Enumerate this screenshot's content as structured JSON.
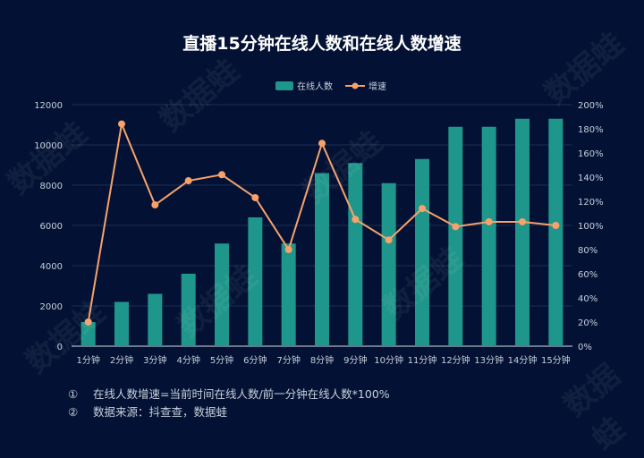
{
  "chart_data": {
    "type": "bar",
    "title": "直播15分钟在线人数和在线人数增速",
    "categories": [
      "1分钟",
      "2分钟",
      "3分钟",
      "4分钟",
      "5分钟",
      "6分钟",
      "7分钟",
      "8分钟",
      "9分钟",
      "10分钟",
      "11分钟",
      "12分钟",
      "13分钟",
      "14分钟",
      "15分钟"
    ],
    "series": [
      {
        "name": "在线人数",
        "type": "bar",
        "axis": "left",
        "color": "#1f968b",
        "values": [
          1200,
          2200,
          2600,
          3600,
          5100,
          6400,
          5100,
          8600,
          9100,
          8100,
          9300,
          10900,
          10900,
          11300,
          11300
        ]
      },
      {
        "name": "增速",
        "type": "line",
        "axis": "right",
        "color": "#f7a26a",
        "values": [
          20,
          184,
          117,
          137,
          142,
          123,
          80,
          168,
          105,
          88,
          114,
          99,
          103,
          103,
          100
        ]
      }
    ],
    "y_left": {
      "range": [
        0,
        12000
      ],
      "ticks": [
        "0",
        "2000",
        "4000",
        "6000",
        "8000",
        "10000",
        "12000"
      ]
    },
    "y_right": {
      "range": [
        0,
        200
      ],
      "unit": "%",
      "ticks": [
        "0%",
        "20%",
        "40%",
        "60%",
        "80%",
        "100%",
        "120%",
        "140%",
        "160%",
        "180%",
        "200%"
      ]
    },
    "grid": true,
    "legend": "top-center"
  },
  "notes": [
    {
      "num": "①",
      "text": "在线人数增速=当前时间在线人数/前一分钟在线人数*100%"
    },
    {
      "num": "②",
      "text": "数据来源：抖查查，数据蛙"
    }
  ],
  "watermark": "数据蛙"
}
